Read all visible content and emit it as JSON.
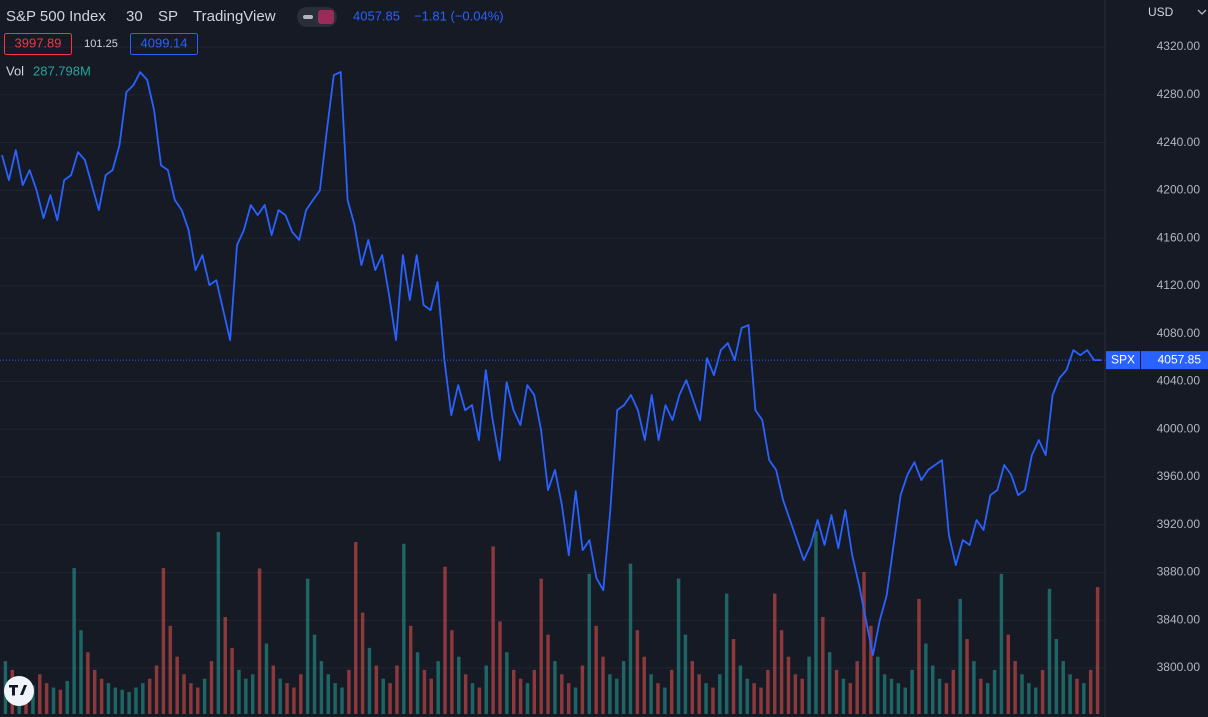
{
  "chart_data": {
    "type": "line",
    "header": {
      "symbol": "S&P 500 Index",
      "interval": "30",
      "exchange": "SP",
      "source": "TradingView",
      "change": "−1.81 (−0.04%)",
      "bid": "3997.89",
      "spread": "101.25",
      "ask": "4099.14",
      "volume_title": "Vol",
      "volume_label": "287.798M"
    },
    "currency": "USD",
    "last_tag": "SPX",
    "series": [
      {
        "name": "SPX",
        "color": "#2962ff",
        "values": [
          4229.5,
          4208.6,
          4233.7,
          4204.4,
          4217,
          4200,
          4176.8,
          4196,
          4175,
          4208.6,
          4212.8,
          4232,
          4225.4,
          4204.4,
          4183.5,
          4212.8,
          4217,
          4238,
          4282.3,
          4288,
          4299,
          4292.4,
          4267,
          4221,
          4217,
          4191.9,
          4183.5,
          4166.7,
          4133.2,
          4145.8,
          4120.7,
          4124.8,
          4099.7,
          4074.6,
          4154.2,
          4166.7,
          4187.7,
          4179.3,
          4187.7,
          4162.5,
          4183.5,
          4179.3,
          4165,
          4158.4,
          4183.5,
          4191.9,
          4200,
          4250.5,
          4296.5,
          4299,
          4191.9,
          4171,
          4137.4,
          4158.4,
          4133.2,
          4145.8,
          4112.3,
          4074.6,
          4145.8,
          4108.1,
          4145.8,
          4104,
          4099.7,
          4123.2,
          4057.9,
          4011.8,
          4036.9,
          4016,
          4020.2,
          3990.9,
          4049.5,
          4007.6,
          3974.1,
          4039.4,
          4016,
          4003.4,
          4036.9,
          4028.6,
          3999.2,
          3949,
          3965.9,
          3936.4,
          3894.5,
          3948.2,
          3898.7,
          3907.1,
          3875.3,
          3865.2,
          3932.2,
          4016,
          4020.2,
          4028.6,
          4016,
          3990.9,
          4028.6,
          3990.9,
          4020.2,
          4007.6,
          4028.6,
          4041.1,
          4024.4,
          4007.6,
          4059.5,
          4045.3,
          4066.2,
          4072.1,
          4057.9,
          4084.7,
          4087.2,
          4016,
          4007.6,
          3974.1,
          3965.9,
          3940.6,
          3924,
          3907.1,
          3890.4,
          3903,
          3924,
          3903,
          3928.1,
          3900.4,
          3932.2,
          3894.5,
          3869.4,
          3840.1,
          3810.8,
          3840.1,
          3861,
          3903,
          3944.8,
          3962,
          3972.4,
          3957.4,
          3965.9,
          3970,
          3974.1,
          3911.3,
          3886.2,
          3907.1,
          3903,
          3924,
          3915.6,
          3944.8,
          3949,
          3970,
          3962,
          3944.8,
          3949,
          3978.3,
          3990.9,
          3978.3,
          4028.6,
          4042.8,
          4049.5,
          4066.2,
          4062,
          4066.2,
          4057.9,
          4057.85
        ]
      }
    ],
    "volume": {
      "up_color": "#26a69a",
      "down_color": "#ef5350",
      "values": [
        120,
        100,
        80,
        70,
        65,
        90,
        70,
        60,
        55,
        75,
        331,
        190,
        140,
        100,
        80,
        70,
        60,
        55,
        50,
        60,
        70,
        80,
        110,
        331,
        200,
        130,
        90,
        70,
        60,
        80,
        120,
        413,
        220,
        150,
        100,
        80,
        90,
        330,
        160,
        110,
        80,
        70,
        60,
        90,
        307,
        180,
        120,
        90,
        70,
        60,
        100,
        390,
        230,
        150,
        110,
        80,
        70,
        110,
        386,
        200,
        140,
        100,
        80,
        120,
        334,
        190,
        130,
        90,
        70,
        60,
        110,
        380,
        210,
        140,
        100,
        80,
        70,
        100,
        307,
        180,
        120,
        90,
        70,
        60,
        110,
        318,
        200,
        130,
        90,
        80,
        120,
        341,
        190,
        130,
        90,
        70,
        60,
        100,
        307,
        180,
        120,
        90,
        70,
        60,
        90,
        273,
        170,
        110,
        80,
        70,
        60,
        100,
        273,
        190,
        130,
        90,
        80,
        130,
        415,
        220,
        140,
        100,
        80,
        70,
        120,
        322,
        200,
        130,
        90,
        80,
        70,
        60,
        100,
        261,
        160,
        110,
        80,
        70,
        100,
        261,
        170,
        120,
        80,
        70,
        100,
        318,
        180,
        120,
        90,
        70,
        60,
        100,
        284,
        170,
        120,
        90,
        80,
        70,
        100,
        287.798
      ]
    },
    "ylim": [
      3759,
      4359.4
    ],
    "yticks": [
      {
        "value": 3800,
        "label": "3800.00"
      },
      {
        "value": 3840,
        "label": "3840.00"
      },
      {
        "value": 3880,
        "label": "3880.00"
      },
      {
        "value": 3920,
        "label": "3920.00"
      },
      {
        "value": 3960,
        "label": "3960.00"
      },
      {
        "value": 4000,
        "label": "4000.00"
      },
      {
        "value": 4040,
        "label": "4040.00"
      },
      {
        "value": 4080,
        "label": "4080.00"
      },
      {
        "value": 4120,
        "label": "4120.00"
      },
      {
        "value": 4160,
        "label": "4160.00"
      },
      {
        "value": 4200,
        "label": "4200.00"
      },
      {
        "value": 4240,
        "label": "4240.00"
      },
      {
        "value": 4280,
        "label": "4280.00"
      },
      {
        "value": 4320,
        "label": "4320.00"
      }
    ],
    "grid": true
  }
}
